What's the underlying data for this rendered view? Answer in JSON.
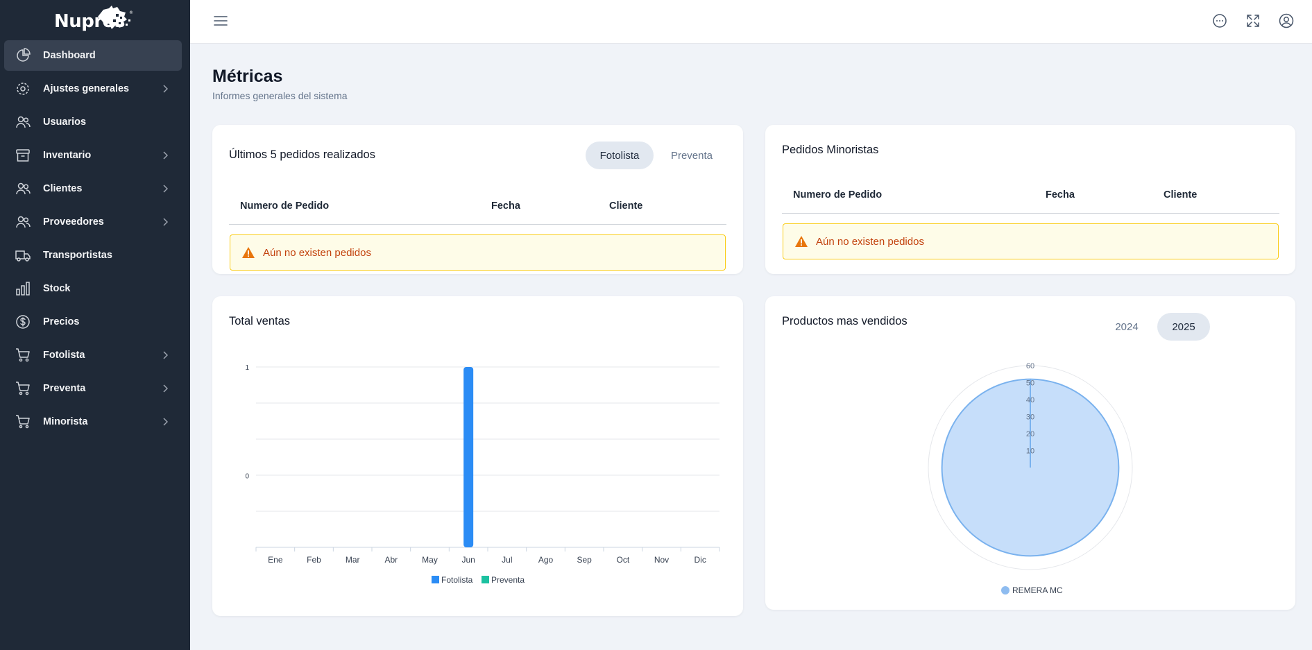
{
  "brand": {
    "name": "Nupros"
  },
  "sidebar": {
    "items": [
      {
        "label": "Dashboard",
        "icon": "pie-chart-icon",
        "active": true,
        "chevron": false
      },
      {
        "label": "Ajustes generales",
        "icon": "gear-icon",
        "chevron": true
      },
      {
        "label": "Usuarios",
        "icon": "users-icon",
        "chevron": false
      },
      {
        "label": "Inventario",
        "icon": "archive-box-icon",
        "chevron": true
      },
      {
        "label": "Clientes",
        "icon": "users-icon",
        "chevron": true
      },
      {
        "label": "Proveedores",
        "icon": "users-icon",
        "chevron": true
      },
      {
        "label": "Transportistas",
        "icon": "truck-icon",
        "chevron": false
      },
      {
        "label": "Stock",
        "icon": "bar-chart-icon",
        "chevron": false
      },
      {
        "label": "Precios",
        "icon": "dollar-circle-icon",
        "chevron": false
      },
      {
        "label": "Fotolista",
        "icon": "shopping-cart-icon",
        "chevron": true
      },
      {
        "label": "Preventa",
        "icon": "shopping-cart-icon",
        "chevron": true
      },
      {
        "label": "Minorista",
        "icon": "shopping-cart-icon",
        "chevron": true
      }
    ]
  },
  "header": {
    "icons": [
      "menu-icon",
      "chat-icon",
      "fullscreen-icon",
      "user-circle-icon"
    ]
  },
  "page": {
    "title": "Métricas",
    "subtitle": "Informes generales del sistema"
  },
  "orders_card": {
    "title": "Últimos 5 pedidos realizados",
    "tabs": [
      {
        "label": "Fotolista",
        "selected": true
      },
      {
        "label": "Preventa",
        "selected": false
      }
    ],
    "columns": [
      "Numero de Pedido",
      "Fecha",
      "Cliente"
    ],
    "empty_message": "Aún no existen pedidos"
  },
  "retail_card": {
    "title": "Pedidos Minoristas",
    "columns": [
      "Numero de Pedido",
      "Fecha",
      "Cliente"
    ],
    "empty_message": "Aún no existen pedidos"
  },
  "sales_card": {
    "title": "Total ventas"
  },
  "products_card": {
    "title": "Productos mas vendidos",
    "years": [
      {
        "label": "2024",
        "selected": false
      },
      {
        "label": "2025",
        "selected": true
      }
    ]
  },
  "colors": {
    "sidebar_bg": "#1f2937",
    "fotolista": "#2b8cf5",
    "preventa": "#1cc1a0",
    "radar_fill": "#c6defa",
    "radar_stroke": "#7ab2ee",
    "alert_text": "#c2410c"
  },
  "chart_data": [
    {
      "type": "bar",
      "categories": [
        "Ene",
        "Feb",
        "Mar",
        "Abr",
        "May",
        "Jun",
        "Jul",
        "Ago",
        "Sep",
        "Oct",
        "Nov",
        "Dic"
      ],
      "series": [
        {
          "name": "Fotolista",
          "values": [
            0,
            0,
            0,
            0,
            0,
            1,
            0,
            0,
            0,
            0,
            0,
            0
          ]
        },
        {
          "name": "Preventa",
          "values": [
            0,
            0,
            0,
            0,
            0,
            0,
            0,
            0,
            0,
            0,
            0,
            0
          ]
        }
      ],
      "yticks": [
        "1",
        "0"
      ],
      "ylim": [
        -0.66,
        1
      ],
      "grid": true,
      "legend": "bottom"
    },
    {
      "type": "radar",
      "series": [
        {
          "name": "REMERA MC",
          "values": [
            52
          ]
        }
      ],
      "rticks": [
        10,
        20,
        30,
        40,
        50,
        60
      ],
      "rlim": [
        0,
        60
      ],
      "legend": "bottom"
    }
  ]
}
